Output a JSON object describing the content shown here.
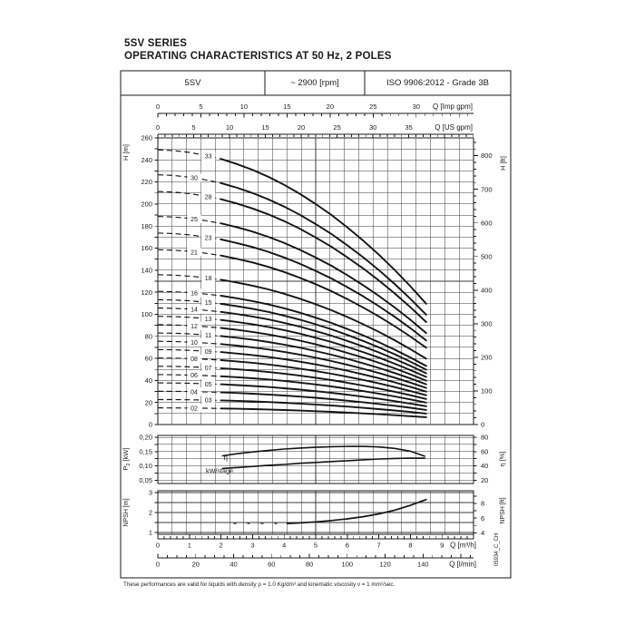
{
  "title": {
    "line1": "5SV SERIES",
    "line2": "OPERATING CHARACTERISTICS AT 50 Hz, 2 POLES"
  },
  "header": {
    "model": "5SV",
    "speed": "~ 2900 [rpm]",
    "standard": "ISO 9906:2012 - Grade 3B"
  },
  "footnote": "These performances are valid for liquids with density ρ = 1.0 Kg/dm³ and kinematic viscosity ν = 1 mm²/sec.",
  "doc_code": "05934_C_CH",
  "colors": {
    "ink": "#1a1a1a",
    "grid": "#3a3a3a",
    "curve": "#141414",
    "background": "#ffffff"
  },
  "chart_data": {
    "type": "line",
    "x_axes": [
      {
        "id": "imp-gpm",
        "unit": "Q [Imp gpm]",
        "position": "top",
        "ticks": [
          0,
          5,
          10,
          15,
          20,
          25,
          30
        ],
        "per_m3h": 3.6661,
        "minor_step": 1,
        "max": 36
      },
      {
        "id": "us-gpm",
        "unit": "Q [US gpm]",
        "position": "top",
        "ticks": [
          0,
          5,
          10,
          15,
          20,
          25,
          30,
          35
        ],
        "per_m3h": 4.4029,
        "minor_step": 1,
        "max": 44
      },
      {
        "id": "m3h",
        "unit": "Q [m³/h]",
        "position": "bottom",
        "ticks": [
          0,
          1,
          2,
          3,
          4,
          5,
          6,
          7,
          8,
          9
        ],
        "per_m3h": 1,
        "minor_step": 0.2,
        "max": 10
      },
      {
        "id": "lmin",
        "unit": "Q [l/min]",
        "position": "bottom",
        "ticks": [
          0,
          20,
          40,
          60,
          80,
          100,
          120,
          140
        ],
        "per_m3h": 16.667,
        "minor_step": 5,
        "max": 166
      }
    ],
    "head_panel": {
      "ylabel_left": "H [m]",
      "ylabel_right": "H [ft]",
      "y_ticks_left": [
        0,
        20,
        40,
        60,
        80,
        100,
        120,
        140,
        160,
        180,
        200,
        220,
        240,
        260
      ],
      "y_ticks_right": [
        0,
        100,
        200,
        300,
        400,
        500,
        600,
        700,
        800
      ],
      "ylim_m": [
        0,
        260
      ],
      "q_samples": [
        0,
        0.5,
        1,
        1.5,
        2,
        2.5,
        3,
        3.5,
        4,
        4.5,
        5,
        5.5,
        6,
        6.5,
        7,
        7.5,
        8,
        8.5
      ],
      "head_per_stage": [
        7.55,
        7.53,
        7.48,
        7.4,
        7.3,
        7.16,
        7.0,
        6.81,
        6.59,
        6.34,
        6.06,
        5.76,
        5.42,
        5.06,
        4.67,
        4.25,
        3.8,
        3.32
      ],
      "dashed_until_q": 2.0,
      "stages": [
        {
          "label": "33",
          "n": 33,
          "label_q": 1.6
        },
        {
          "label": "30",
          "n": 30,
          "label_q": 1.15
        },
        {
          "label": "28",
          "n": 28,
          "label_q": 1.6
        },
        {
          "label": "25",
          "n": 25,
          "label_q": 1.15
        },
        {
          "label": "23",
          "n": 23,
          "label_q": 1.6
        },
        {
          "label": "21",
          "n": 21,
          "label_q": 1.15
        },
        {
          "label": "18",
          "n": 18,
          "label_q": 1.6
        },
        {
          "label": "16",
          "n": 16,
          "label_q": 1.15
        },
        {
          "label": "15",
          "n": 15,
          "label_q": 1.6
        },
        {
          "label": "14",
          "n": 14,
          "label_q": 1.15
        },
        {
          "label": "13",
          "n": 13,
          "label_q": 1.6
        },
        {
          "label": "12",
          "n": 12,
          "label_q": 1.15
        },
        {
          "label": "11",
          "n": 11,
          "label_q": 1.6
        },
        {
          "label": "10",
          "n": 10,
          "label_q": 1.15
        },
        {
          "label": "09",
          "n": 9,
          "label_q": 1.6
        },
        {
          "label": "08",
          "n": 8,
          "label_q": 1.15
        },
        {
          "label": "07",
          "n": 7,
          "label_q": 1.6
        },
        {
          "label": "06",
          "n": 6,
          "label_q": 1.15
        },
        {
          "label": "05",
          "n": 5,
          "label_q": 1.6
        },
        {
          "label": "04",
          "n": 4,
          "label_q": 1.15
        },
        {
          "label": "03",
          "n": 3,
          "label_q": 1.6
        },
        {
          "label": "02",
          "n": 2,
          "label_q": 1.15
        }
      ]
    },
    "power_panel": {
      "ylabel_left_sub": {
        "base": "P",
        "sub": "2",
        "rest": " [kW]"
      },
      "ylabel_right": "η [%]",
      "y_ticks_left": [
        "0,05",
        "0,10",
        "0,15",
        "0,20"
      ],
      "y_ticks_left_eta_pos": [
        20,
        40,
        60,
        80
      ],
      "y_ticks_right": [
        20,
        40,
        60,
        80
      ],
      "series": [
        {
          "name": "kW/stage",
          "q": [
            2.05,
            2.5,
            3,
            3.5,
            4,
            4.5,
            5,
            5.5,
            6,
            6.5,
            7,
            7.5,
            8,
            8.45
          ],
          "kw": [
            0.091,
            0.094,
            0.098,
            0.102,
            0.105,
            0.109,
            0.112,
            0.115,
            0.118,
            0.121,
            0.124,
            0.126,
            0.127,
            0.127
          ]
        },
        {
          "name": "η",
          "q": [
            2.05,
            2.5,
            3,
            3.5,
            4,
            4.5,
            5,
            5.5,
            6,
            6.5,
            7,
            7.5,
            8,
            8.45
          ],
          "eta": [
            54,
            57,
            59.5,
            61.5,
            63.5,
            65,
            66,
            66.8,
            67.2,
            67.2,
            66.5,
            64.5,
            60.5,
            53.5
          ]
        }
      ]
    },
    "npsh_panel": {
      "ylabel_left": "NPSH [m]",
      "ylabel_right": "NPSH [ft]",
      "y_ticks_left": [
        1,
        2,
        3
      ],
      "y_ticks_right": [
        4,
        6,
        8
      ],
      "lead_in": {
        "q": [
          2.4,
          4.1
        ],
        "m": [
          1.45,
          1.45
        ]
      },
      "series": {
        "q": [
          4.1,
          4.5,
          5,
          5.5,
          6,
          6.5,
          7,
          7.5,
          8,
          8.5
        ],
        "m": [
          1.45,
          1.48,
          1.53,
          1.6,
          1.68,
          1.79,
          1.93,
          2.12,
          2.36,
          2.65
        ]
      }
    }
  }
}
